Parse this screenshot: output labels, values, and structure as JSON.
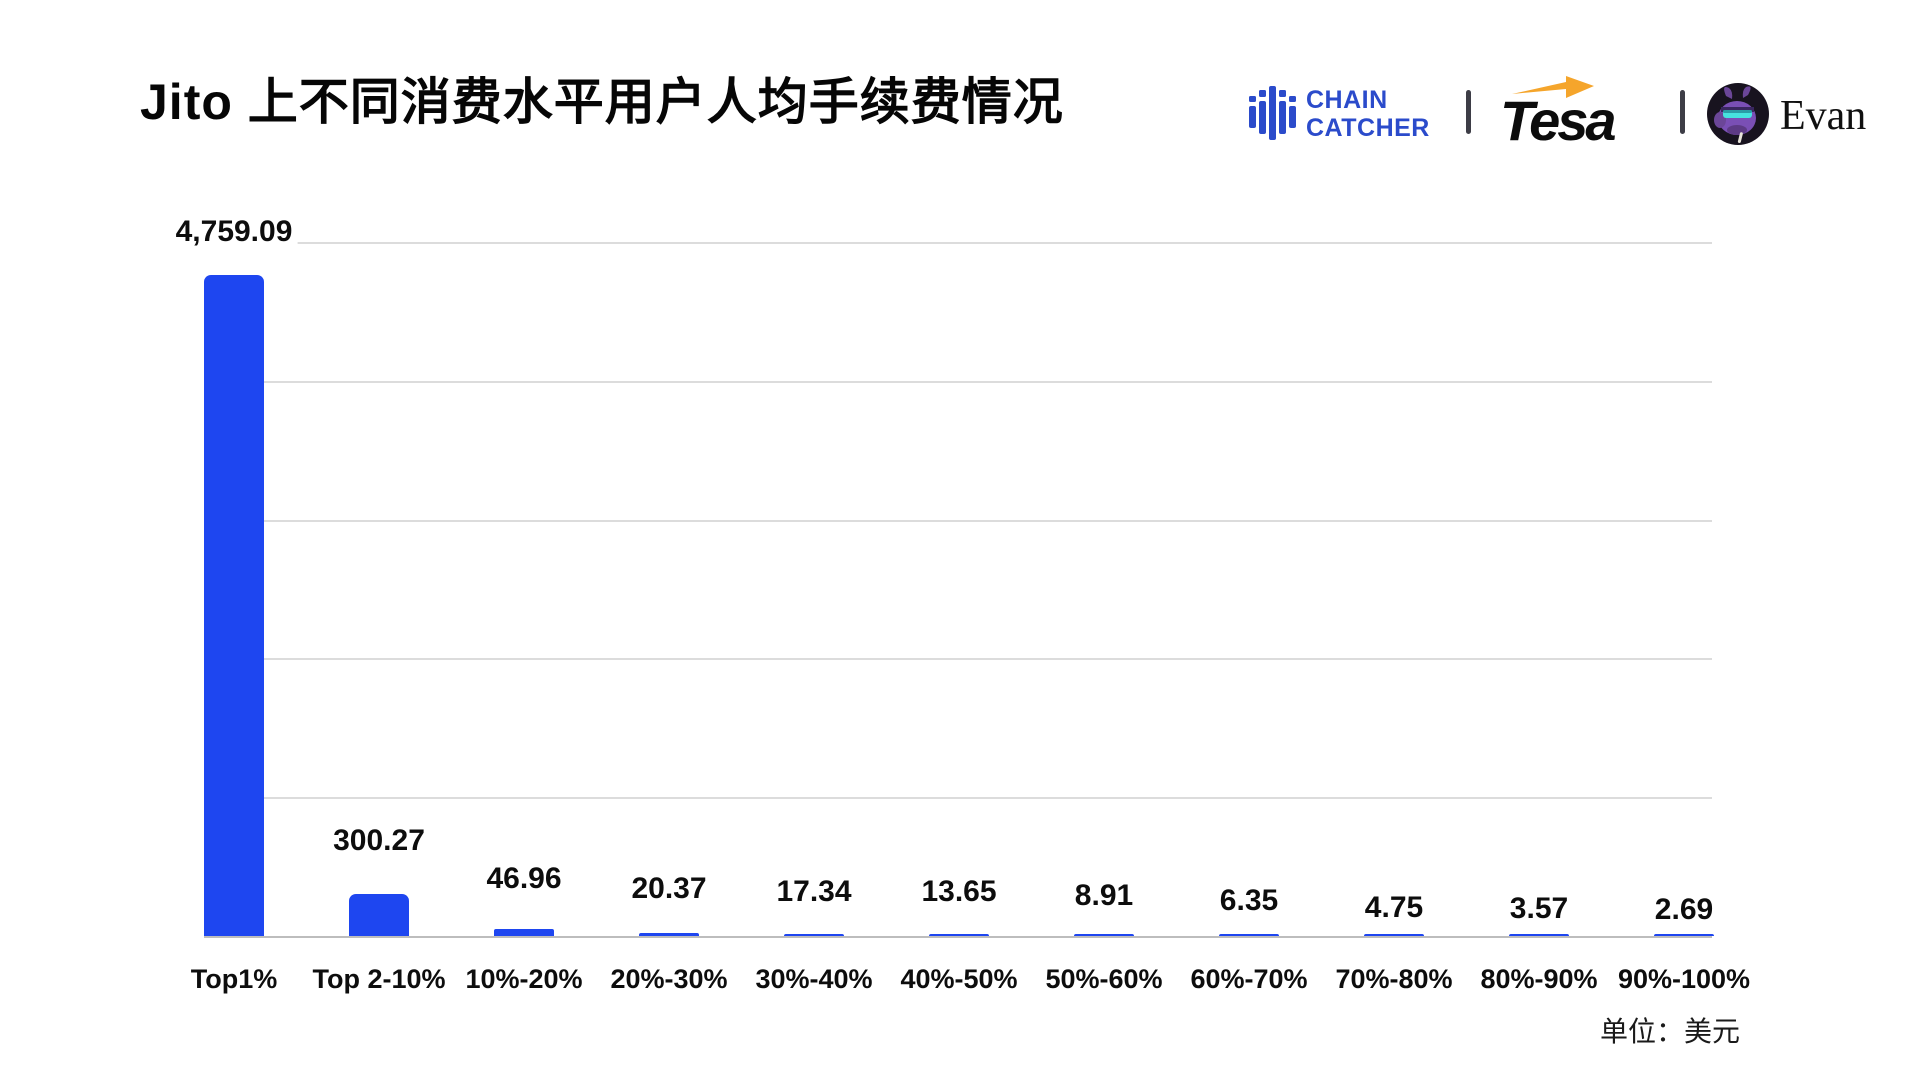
{
  "title": "Jito 上不同消费水平用户人均手续费情况",
  "header": {
    "chaincatcher": {
      "line1": "CHAIN",
      "line2": "CATCHER",
      "icon": "chaincatcher-bars-shield-logo",
      "color": "#2b4bcb"
    },
    "divider_glyph": "|",
    "tesa": {
      "label": "Tesa",
      "icon": "tesa-orange-arrow",
      "arrow_color": "#f5a52b",
      "color": "#0c0c0c"
    },
    "evan": {
      "label": "Evan",
      "icon": "purple-creature-avatar"
    }
  },
  "footer": {
    "unit_note": "单位：美元"
  },
  "chart_data": {
    "type": "bar",
    "title": "Jito 上不同消费水平用户人均手续费情况",
    "categories": [
      "Top1%",
      "Top 2-10%",
      "10%-20%",
      "20%-30%",
      "30%-40%",
      "40%-50%",
      "50%-60%",
      "60%-70%",
      "70%-80%",
      "80%-90%",
      "90%-100%"
    ],
    "values": [
      4759.09,
      300.27,
      46.96,
      20.37,
      17.34,
      13.65,
      8.91,
      6.35,
      4.75,
      3.57,
      2.69
    ],
    "value_labels": [
      "4,759.09",
      "300.27",
      "46.96",
      "20.37",
      "17.34",
      "13.65",
      "8.91",
      "6.35",
      "4.75",
      "3.57",
      "2.69"
    ],
    "xlabel": "",
    "ylabel": "",
    "ylim": [
      0,
      5000
    ],
    "gridline_interval": 1000,
    "grid": true,
    "legend_position": "none",
    "bar_color": "#1e46f0",
    "unit": "美元"
  }
}
